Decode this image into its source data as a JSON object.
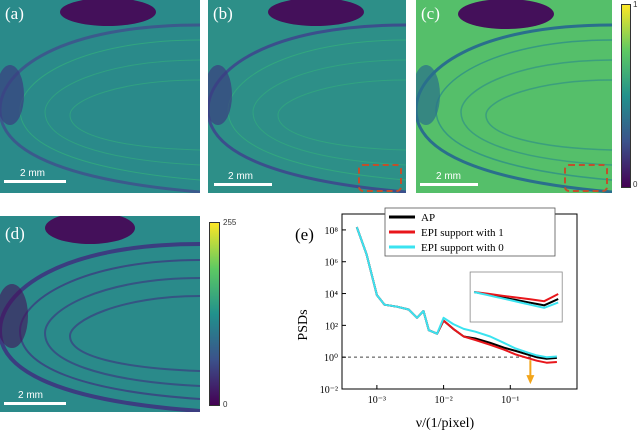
{
  "panels": {
    "a": {
      "label": "(a)",
      "scalebar": "2 mm"
    },
    "b": {
      "label": "(b)",
      "scalebar": "2 mm"
    },
    "c": {
      "label": "(c)",
      "scalebar": "2 mm"
    },
    "d": {
      "label": "(d)",
      "scalebar": "2 mm"
    }
  },
  "colorbar_top": {
    "max_label": "1",
    "min_label": "0"
  },
  "colorbar_bottom": {
    "max_label": "255",
    "min_label": "0"
  },
  "colors": {
    "viridis_dark": "#44105a",
    "viridis_mid": "#2a8a8a",
    "viridis_light": "#5ec962",
    "viridis_yellow": "#fde725",
    "roi": "#c0502c",
    "arrow": "#f2a51a"
  },
  "chart_data": {
    "type": "line",
    "panel_label": "(e)",
    "xlabel": "ν/(1/pixel)",
    "ylabel": "PSDs",
    "x_scale": "log",
    "y_scale": "log",
    "xlim": [
      0.0003,
      1
    ],
    "ylim": [
      0.01,
      1000000000
    ],
    "x_ticks": [
      {
        "value": 0.001,
        "label": "10⁻³"
      },
      {
        "value": 0.01,
        "label": "10⁻²"
      },
      {
        "value": 0.1,
        "label": "10⁻¹"
      }
    ],
    "y_ticks": [
      {
        "value": 0.01,
        "label": "10⁻²"
      },
      {
        "value": 1,
        "label": "10⁰"
      },
      {
        "value": 100,
        "label": "10²"
      },
      {
        "value": 10000,
        "label": "10⁴"
      },
      {
        "value": 1000000,
        "label": "10⁶"
      },
      {
        "value": 100000000,
        "label": "10⁸"
      }
    ],
    "legend_position": "top-right",
    "reference_line": {
      "y": 1,
      "style": "dashed"
    },
    "arrow_x": 0.2,
    "series": [
      {
        "name": "AP",
        "color": "#000000",
        "x": [
          0.0005,
          0.0007,
          0.001,
          0.0013,
          0.002,
          0.003,
          0.004,
          0.005,
          0.006,
          0.008,
          0.01,
          0.014,
          0.02,
          0.03,
          0.05,
          0.08,
          0.12,
          0.18,
          0.25,
          0.35,
          0.5
        ],
        "y": [
          150000000,
          3000000,
          8000,
          2000,
          1500,
          1000,
          300,
          800,
          50,
          30,
          200,
          60,
          20,
          15,
          8,
          4,
          2.5,
          1.5,
          1,
          0.8,
          0.9
        ]
      },
      {
        "name": "EPI support with 1",
        "color": "#e8161b",
        "x": [
          0.0005,
          0.0007,
          0.001,
          0.0013,
          0.002,
          0.003,
          0.004,
          0.005,
          0.006,
          0.008,
          0.01,
          0.014,
          0.02,
          0.03,
          0.05,
          0.08,
          0.12,
          0.18,
          0.25,
          0.35,
          0.5
        ],
        "y": [
          150000000,
          3000000,
          8000,
          2000,
          1500,
          1000,
          300,
          800,
          50,
          30,
          200,
          60,
          20,
          12,
          6,
          3,
          1.5,
          0.9,
          0.6,
          0.45,
          0.5
        ]
      },
      {
        "name": "EPI support with 0",
        "color": "#3ae3f0",
        "x": [
          0.0005,
          0.0007,
          0.001,
          0.0013,
          0.002,
          0.003,
          0.004,
          0.005,
          0.006,
          0.008,
          0.01,
          0.014,
          0.02,
          0.03,
          0.05,
          0.08,
          0.12,
          0.18,
          0.25,
          0.35,
          0.5
        ],
        "y": [
          150000000,
          3000000,
          8000,
          2000,
          1500,
          1000,
          300,
          800,
          50,
          30,
          300,
          120,
          60,
          40,
          20,
          8,
          3.5,
          2,
          1.3,
          1,
          1.1
        ]
      }
    ]
  }
}
